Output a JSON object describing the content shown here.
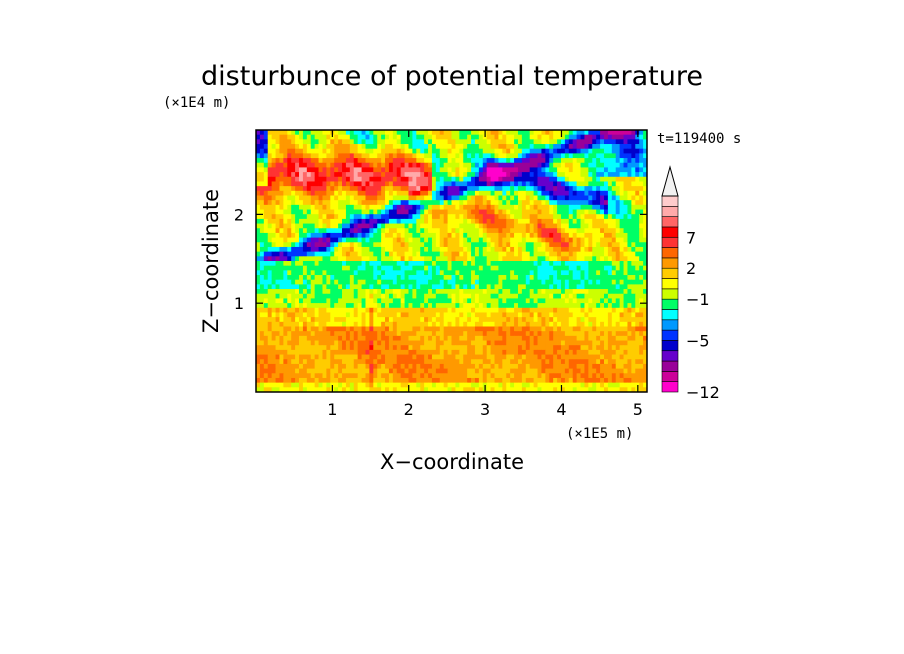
{
  "chart_data": {
    "type": "heatmap",
    "title": "disturbunce of potential temperature",
    "xlabel": "X−coordinate",
    "ylabel": "Z−coordinate",
    "x_scale_label": "(×1E5 m)",
    "y_scale_label": "(×1E4 m)",
    "time_label": "t=119400 s",
    "xlim": [
      0,
      5.12
    ],
    "ylim": [
      0,
      2.95
    ],
    "x_ticks": [
      {
        "value": 1,
        "label": "1"
      },
      {
        "value": 2,
        "label": "2"
      },
      {
        "value": 3,
        "label": "3"
      },
      {
        "value": 4,
        "label": "4"
      },
      {
        "value": 5,
        "label": "5"
      }
    ],
    "y_ticks": [
      {
        "value": 1,
        "label": "1"
      },
      {
        "value": 2,
        "label": "2"
      }
    ],
    "colorbar": {
      "levels": [
        {
          "color": "#ff00cc"
        },
        {
          "color": "#cc0099"
        },
        {
          "color": "#990099"
        },
        {
          "color": "#6600cc"
        },
        {
          "color": "#0000cc"
        },
        {
          "color": "#0033ff"
        },
        {
          "color": "#0099ff"
        },
        {
          "color": "#00ffff"
        },
        {
          "color": "#00ff66"
        },
        {
          "color": "#ccff00"
        },
        {
          "color": "#ffff00"
        },
        {
          "color": "#ffcc00"
        },
        {
          "color": "#ff9900"
        },
        {
          "color": "#ff6600"
        },
        {
          "color": "#ff3333"
        },
        {
          "color": "#ff0000"
        },
        {
          "color": "#ff6666"
        },
        {
          "color": "#ffaaaa"
        },
        {
          "color": "#ffcccc"
        }
      ],
      "arrow_color": "#f2f2f2",
      "labels": [
        {
          "text": "7",
          "level_index": 15
        },
        {
          "text": "2",
          "level_index": 12
        },
        {
          "text": "−1",
          "level_index": 9
        },
        {
          "text": "−5",
          "level_index": 5
        },
        {
          "text": "−12",
          "level_index": 0
        }
      ]
    }
  }
}
